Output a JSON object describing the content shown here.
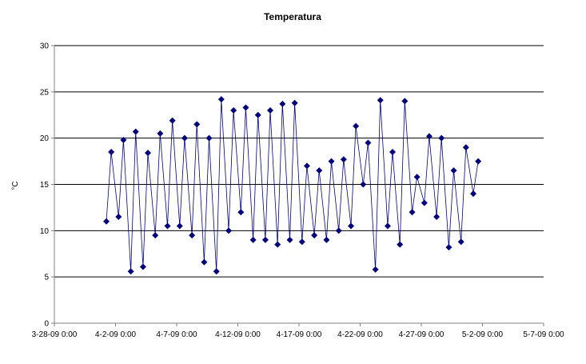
{
  "chart_data": {
    "type": "scatter",
    "title": "Temperatura",
    "xlabel": "",
    "ylabel": "°C",
    "ylim": [
      0,
      30
    ],
    "yticks": [
      0,
      5,
      10,
      15,
      20,
      25,
      30
    ],
    "xlim": [
      "3-28-09 0:00",
      "5-7-09 0:00"
    ],
    "xtick_labels": [
      "3-28-09 0:00",
      "4-2-09 0:00",
      "4-7-09 0:00",
      "4-12-09 0:00",
      "4-17-09 0:00",
      "4-22-09 0:00",
      "4-27-09 0:00",
      "5-2-09 0:00",
      "5-7-09 0:00"
    ],
    "grid": "horizontal",
    "marker": "diamond",
    "colors": {
      "series": "#000080",
      "line": "#000080",
      "grid": "#000000",
      "axis": "#808080"
    },
    "series": [
      {
        "x": [
          "2009-04-01",
          "2009-04-01",
          "2009-04-02",
          "2009-04-02",
          "2009-04-03",
          "2009-04-03",
          "2009-04-04",
          "2009-04-04",
          "2009-04-05",
          "2009-04-05",
          "2009-04-06",
          "2009-04-06",
          "2009-04-07",
          "2009-04-07",
          "2009-04-08",
          "2009-04-08",
          "2009-04-09",
          "2009-04-09",
          "2009-04-10",
          "2009-04-10",
          "2009-04-11",
          "2009-04-11",
          "2009-04-12",
          "2009-04-12",
          "2009-04-13",
          "2009-04-13",
          "2009-04-14",
          "2009-04-14",
          "2009-04-15",
          "2009-04-15",
          "2009-04-16",
          "2009-04-16",
          "2009-04-17",
          "2009-04-17",
          "2009-04-18",
          "2009-04-18",
          "2009-04-19",
          "2009-04-19",
          "2009-04-20",
          "2009-04-20",
          "2009-04-21",
          "2009-04-21",
          "2009-04-22",
          "2009-04-22",
          "2009-04-23",
          "2009-04-23",
          "2009-04-24",
          "2009-04-24",
          "2009-04-25",
          "2009-04-25",
          "2009-04-26",
          "2009-04-26",
          "2009-04-27",
          "2009-04-27",
          "2009-04-28",
          "2009-04-28",
          "2009-04-29",
          "2009-04-29",
          "2009-04-30",
          "2009-04-30",
          "2009-05-01",
          "2009-05-01"
        ],
        "y": [
          11.0,
          18.5,
          11.5,
          19.8,
          5.6,
          20.7,
          6.1,
          18.4,
          9.5,
          20.5,
          10.5,
          21.9,
          10.5,
          20.0,
          9.5,
          21.5,
          6.6,
          20.0,
          5.6,
          24.2,
          10.0,
          23.0,
          12.0,
          23.3,
          9.0,
          22.5,
          9.0,
          23.0,
          8.5,
          23.7,
          9.0,
          23.8,
          8.8,
          17.0,
          9.5,
          16.5,
          9.0,
          17.5,
          10.0,
          17.7,
          10.5,
          21.3,
          15.0,
          19.5,
          5.8,
          24.1,
          10.5,
          18.5,
          8.5,
          24.0,
          12.0,
          15.8,
          13.0,
          20.2,
          11.5,
          20.0,
          8.2,
          16.5,
          8.8,
          19.0,
          14.0,
          17.5
        ]
      }
    ]
  }
}
